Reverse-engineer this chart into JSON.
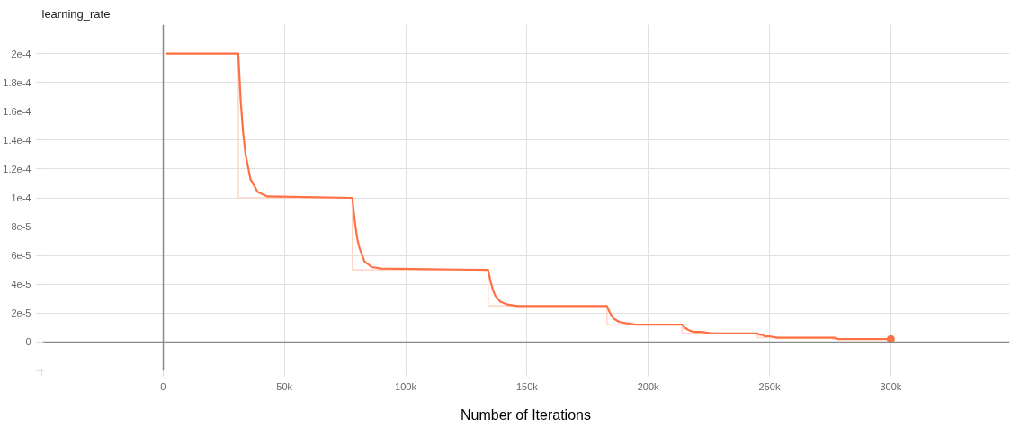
{
  "chart_data": {
    "type": "line",
    "title": "learning_rate",
    "xlabel": "Number of Iterations",
    "xlim": [
      -50000,
      349000
    ],
    "ylim": [
      -2e-05,
      0.00022
    ],
    "xticks": [
      {
        "value": -50000,
        "label": null
      },
      {
        "value": 0,
        "label": "0"
      },
      {
        "value": 50000,
        "label": "50k"
      },
      {
        "value": 100000,
        "label": "100k"
      },
      {
        "value": 150000,
        "label": "150k"
      },
      {
        "value": 200000,
        "label": "200k"
      },
      {
        "value": 250000,
        "label": "250k"
      },
      {
        "value": 300000,
        "label": "300k"
      }
    ],
    "yticks": [
      {
        "value": -2e-05,
        "label": null
      },
      {
        "value": 0,
        "label": "0"
      },
      {
        "value": 2e-05,
        "label": "2e-5"
      },
      {
        "value": 4e-05,
        "label": "4e-5"
      },
      {
        "value": 6e-05,
        "label": "6e-5"
      },
      {
        "value": 8e-05,
        "label": "8e-5"
      },
      {
        "value": 0.0001,
        "label": "1e-4"
      },
      {
        "value": 0.00012,
        "label": "1.2e-4"
      },
      {
        "value": 0.00014,
        "label": "1.4e-4"
      },
      {
        "value": 0.00016,
        "label": "1.6e-4"
      },
      {
        "value": 0.00018,
        "label": "1.8e-4"
      },
      {
        "value": 0.0002,
        "label": "2e-4"
      }
    ],
    "grid": true,
    "series": [
      {
        "type": "step",
        "color": "#ffd5c8",
        "x": [
          1000,
          31000,
          78000,
          134000,
          183000,
          214000,
          245000,
          276000,
          300000
        ],
        "values": [
          0.0002,
          0.0001,
          5e-05,
          2.5e-05,
          1.2e-05,
          6e-06,
          3e-06,
          2e-06,
          2e-06
        ]
      },
      {
        "color": "#ff7043",
        "x": [
          1000,
          31000,
          32000,
          33000,
          34000,
          36000,
          39000,
          43000,
          78000,
          79000,
          80000,
          81000,
          83000,
          86000,
          90000,
          134000,
          135000,
          136000,
          137000,
          139000,
          142000,
          146000,
          183000,
          184000,
          185000,
          186000,
          188000,
          191000,
          195000,
          214000,
          215000,
          216000,
          217000,
          219000,
          222000,
          226000,
          245000,
          246000,
          247000,
          248000,
          250000,
          253000,
          257000,
          276000,
          277000,
          278000,
          279000,
          281000,
          284000,
          288000,
          300000
        ],
        "values": [
          0.0002,
          0.0002,
          0.000167,
          0.000145,
          0.00013,
          0.000113,
          0.000104,
          0.000101,
          0.0001,
          8.4e-05,
          7.2e-05,
          6.5e-05,
          5.6e-05,
          5.2e-05,
          5.1e-05,
          5e-05,
          4.2e-05,
          3.6e-05,
          3.2e-05,
          2.8e-05,
          2.6e-05,
          2.5e-05,
          2.5e-05,
          2.1e-05,
          1.8e-05,
          1.6e-05,
          1.4e-05,
          1.3e-05,
          1.2e-05,
          1.2e-05,
          1e-05,
          9e-06,
          8e-06,
          7e-06,
          7e-06,
          6e-06,
          6e-06,
          5e-06,
          5e-06,
          4e-06,
          4e-06,
          3e-06,
          3e-06,
          3e-06,
          3e-06,
          2e-06,
          2e-06,
          2e-06,
          2e-06,
          2e-06,
          2e-06
        ]
      },
      {
        "type": "scatter",
        "color": "#ff7043",
        "marker": "circle",
        "x": [
          300000
        ],
        "values": [
          2e-06
        ]
      }
    ]
  }
}
